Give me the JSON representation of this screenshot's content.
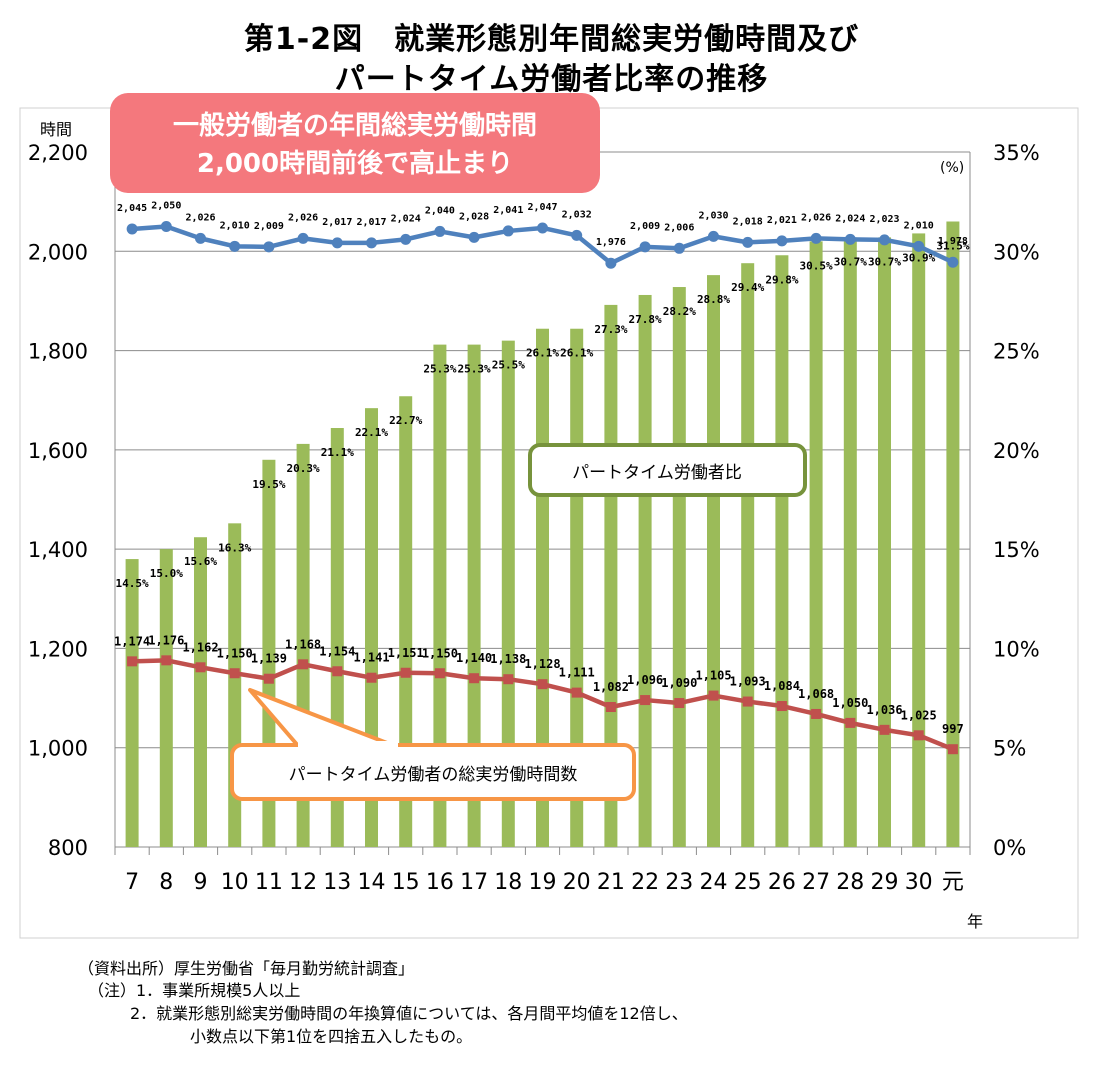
{
  "title_line1": "第1-2図　就業形態別年間総実労働時間及び",
  "title_line2": "パートタイム労働者比率の推移",
  "chart_data": {
    "type": "bar+line",
    "categories": [
      "7",
      "8",
      "9",
      "10",
      "11",
      "12",
      "13",
      "14",
      "15",
      "16",
      "17",
      "18",
      "19",
      "20",
      "21",
      "22",
      "23",
      "24",
      "25",
      "26",
      "27",
      "28",
      "29",
      "30",
      "元"
    ],
    "x_unit": "年",
    "y_left": {
      "label": "時間",
      "min": 800,
      "max": 2200,
      "ticks": [
        "800",
        "1,000",
        "1,200",
        "1,400",
        "1,600",
        "1,800",
        "2,000",
        "2,200"
      ]
    },
    "y_right": {
      "label": "(%)",
      "min": 0,
      "max": 35,
      "ticks": [
        "0%",
        "5%",
        "10%",
        "15%",
        "20%",
        "25%",
        "30%",
        "35%"
      ]
    },
    "series": [
      {
        "name": "パートタイム労働者比",
        "kind": "bar",
        "axis": "right",
        "color": "#9bbb59",
        "values": [
          14.5,
          15.0,
          15.6,
          16.3,
          19.5,
          20.3,
          21.1,
          22.1,
          22.7,
          25.3,
          25.3,
          25.5,
          26.1,
          26.1,
          27.3,
          27.8,
          28.2,
          28.8,
          29.4,
          29.8,
          30.5,
          30.7,
          30.7,
          30.9,
          31.5
        ],
        "labels": [
          "14.5%",
          "15.0%",
          "15.6%",
          "16.3%",
          "19.5%",
          "20.3%",
          "21.1%",
          "22.1%",
          "22.7%",
          "25.3%",
          "25.3%",
          "25.5%",
          "26.1%",
          "26.1%",
          "27.3%",
          "27.8%",
          "28.2%",
          "28.8%",
          "29.4%",
          "29.8%",
          "30.5%",
          "30.7%",
          "30.7%",
          "30.9%",
          "31.5%"
        ]
      },
      {
        "name": "一般労働者の年間総実労働時間",
        "kind": "line",
        "axis": "left",
        "color": "#4f81bd",
        "values": [
          2045,
          2050,
          2026,
          2010,
          2009,
          2026,
          2017,
          2017,
          2024,
          2040,
          2028,
          2041,
          2047,
          2032,
          1976,
          2009,
          2006,
          2030,
          2018,
          2021,
          2026,
          2024,
          2023,
          2010,
          1978
        ],
        "labels": [
          "2,045",
          "2,050",
          "2,026",
          "2,010",
          "2,009",
          "2,026",
          "2,017",
          "2,017",
          "2,024",
          "2,040",
          "2,028",
          "2,041",
          "2,047",
          "2,032",
          "1,976",
          "2,009",
          "2,006",
          "2,030",
          "2,018",
          "2,021",
          "2,026",
          "2,024",
          "2,023",
          "2,010",
          "1,978"
        ]
      },
      {
        "name": "パートタイム労働者の総実労働時間数",
        "kind": "line",
        "axis": "left",
        "color": "#c0504d",
        "values": [
          1174,
          1176,
          1162,
          1150,
          1139,
          1168,
          1154,
          1141,
          1151,
          1150,
          1140,
          1138,
          1128,
          1111,
          1082,
          1096,
          1090,
          1105,
          1093,
          1084,
          1068,
          1050,
          1036,
          1025,
          997
        ],
        "labels": [
          "1,174",
          "1,176",
          "1,162",
          "1,150",
          "1,139",
          "1,168",
          "1,154",
          "1,141",
          "1,151",
          "1,150",
          "1,140",
          "1,138",
          "1,128",
          "1,111",
          "1,082",
          "1,096",
          "1,090",
          "1,105",
          "1,093",
          "1,084",
          "1,068",
          "1,050",
          "1,036",
          "1,025",
          "997"
        ]
      }
    ],
    "callouts": {
      "general_line1": "一般労働者の年間総実労働時間",
      "general_line2": "2,000時間前後で高止まり",
      "part_ratio": "パートタイム労働者比",
      "part_hours": "パートタイム労働者の総実労働時間数"
    }
  },
  "notes": {
    "source": "（資料出所）厚生労働省「毎月勤労統計調査」",
    "note1": "（注）1．事業所規模5人以上",
    "note2": "2．就業形態別総実労働時間の年換算値については、各月間平均値を12倍し、",
    "note3": "小数点以下第1位を四捨五入したもの。"
  }
}
